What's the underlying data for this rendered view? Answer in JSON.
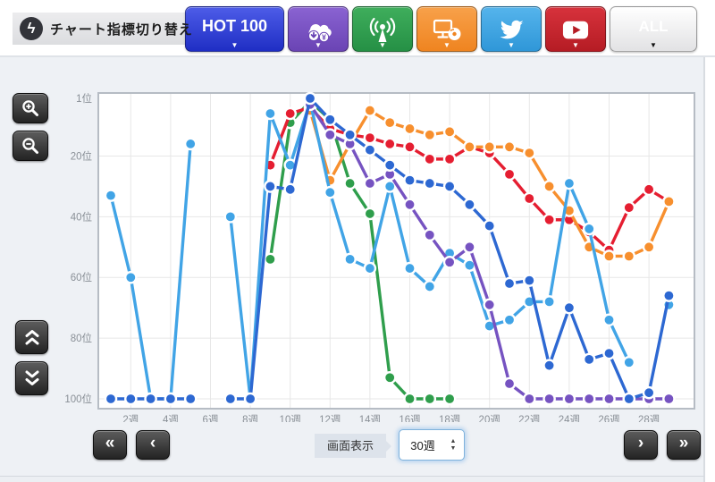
{
  "header": {
    "switcher_label": "チャート指標切り替え",
    "hot100_label": "HOT 100",
    "all_label": "ALL",
    "buttons": [
      {
        "id": "hot100",
        "label": "HOT 100",
        "color": "#2a38d2"
      },
      {
        "id": "sales-download",
        "icon": "cloud-download-icon",
        "color": "#7a53c4"
      },
      {
        "id": "radio-airplay",
        "icon": "radio-tower-icon",
        "color": "#2f9e4c"
      },
      {
        "id": "lookup",
        "icon": "pc-cd-icon",
        "color": "#f28d2e"
      },
      {
        "id": "twitter",
        "icon": "twitter-bird-icon",
        "color": "#3ea3e4"
      },
      {
        "id": "video",
        "icon": "youtube-play-icon",
        "color": "#c8252c"
      },
      {
        "id": "all",
        "label": "ALL",
        "color": "#f4f4f4"
      }
    ]
  },
  "icons": {
    "dropdown": "▼",
    "switcher": "ϟ",
    "first": "«",
    "prev": "‹",
    "next": "›",
    "last": "»",
    "stepper_up": "▲",
    "stepper_down": "▼"
  },
  "controls": {
    "display_label": "画面表示",
    "weeks_select_value": "30週"
  },
  "chart_data": {
    "type": "line",
    "y_axis_inverted": true,
    "grid": true,
    "legend": "none",
    "ylabel": "順位",
    "xlabel": "週",
    "ylim": [
      1,
      100
    ],
    "xlim": [
      1,
      30
    ],
    "y_ticks": [
      "1位",
      "20位",
      "40位",
      "60位",
      "80位",
      "100位"
    ],
    "y_tick_values": [
      1,
      20,
      40,
      60,
      80,
      100
    ],
    "x_ticks": [
      "2週",
      "4週",
      "6週",
      "8週",
      "10週",
      "12週",
      "14週",
      "16週",
      "18週",
      "20週",
      "22週",
      "24週",
      "26週",
      "28週"
    ],
    "x_tick_values": [
      2,
      4,
      6,
      8,
      10,
      12,
      14,
      16,
      18,
      20,
      22,
      24,
      26,
      28
    ],
    "series": [
      {
        "name": "green",
        "color": "#2f9e4c",
        "points": [
          [
            9,
            54
          ],
          [
            10,
            9
          ],
          [
            11,
            2
          ],
          [
            12,
            8
          ],
          [
            13,
            29
          ],
          [
            14,
            39
          ],
          [
            15,
            93
          ],
          [
            16,
            100
          ],
          [
            17,
            100
          ],
          [
            18,
            100
          ]
        ]
      },
      {
        "name": "red",
        "color": "#e51e31",
        "points": [
          [
            9,
            23
          ],
          [
            10,
            6
          ],
          [
            11,
            4
          ],
          [
            12,
            11
          ],
          [
            13,
            13
          ],
          [
            14,
            14
          ],
          [
            15,
            16
          ],
          [
            16,
            17
          ],
          [
            17,
            21
          ],
          [
            18,
            21
          ],
          [
            19,
            17
          ],
          [
            20,
            19
          ],
          [
            21,
            26
          ],
          [
            22,
            34
          ],
          [
            23,
            41
          ],
          [
            24,
            41
          ],
          [
            25,
            45
          ],
          [
            26,
            51
          ],
          [
            27,
            37
          ],
          [
            28,
            31
          ],
          [
            29,
            35
          ]
        ]
      },
      {
        "name": "orange",
        "color": "#f78f2e",
        "points": [
          [
            11,
            5
          ],
          [
            12,
            28
          ],
          [
            13,
            16
          ],
          [
            14,
            5
          ],
          [
            15,
            9
          ],
          [
            16,
            11
          ],
          [
            17,
            13
          ],
          [
            18,
            12
          ],
          [
            19,
            17
          ],
          [
            20,
            17
          ],
          [
            21,
            17
          ],
          [
            22,
            19
          ],
          [
            23,
            30
          ],
          [
            24,
            38
          ],
          [
            25,
            50
          ],
          [
            26,
            53
          ],
          [
            27,
            53
          ],
          [
            28,
            50
          ],
          [
            29,
            35
          ]
        ]
      },
      {
        "name": "light-blue",
        "color": "#41a4e6",
        "points": [
          [
            1,
            33
          ],
          [
            2,
            60
          ],
          [
            3,
            100
          ],
          [
            4,
            100
          ],
          [
            5,
            16
          ],
          [
            7,
            40
          ],
          [
            8,
            100
          ],
          [
            9,
            6
          ],
          [
            10,
            23
          ],
          [
            11,
            2
          ],
          [
            12,
            32
          ],
          [
            13,
            54
          ],
          [
            14,
            57
          ],
          [
            15,
            30
          ],
          [
            16,
            57
          ],
          [
            17,
            63
          ],
          [
            18,
            52
          ],
          [
            19,
            56
          ],
          [
            20,
            76
          ],
          [
            21,
            74
          ],
          [
            22,
            68
          ],
          [
            23,
            68
          ],
          [
            24,
            29
          ],
          [
            25,
            44
          ],
          [
            26,
            74
          ],
          [
            27,
            88
          ],
          [
            29,
            69
          ]
        ]
      },
      {
        "name": "purple",
        "color": "#7653c1",
        "points": [
          [
            11,
            3
          ],
          [
            12,
            13
          ],
          [
            13,
            16
          ],
          [
            14,
            29
          ],
          [
            15,
            26
          ],
          [
            16,
            36
          ],
          [
            17,
            46
          ],
          [
            18,
            55
          ],
          [
            19,
            50
          ],
          [
            20,
            69
          ],
          [
            21,
            95
          ],
          [
            22,
            100
          ],
          [
            23,
            100
          ],
          [
            24,
            100
          ],
          [
            25,
            100
          ],
          [
            26,
            100
          ],
          [
            27,
            100
          ],
          [
            28,
            100
          ],
          [
            29,
            100
          ]
        ]
      },
      {
        "name": "dark-blue",
        "color": "#2d68d2",
        "points": [
          [
            1,
            100
          ],
          [
            2,
            100
          ],
          [
            3,
            100
          ],
          [
            4,
            100
          ],
          [
            5,
            100
          ],
          [
            7,
            100
          ],
          [
            8,
            100
          ],
          [
            9,
            30
          ],
          [
            10,
            31
          ],
          [
            11,
            1
          ],
          [
            12,
            8
          ],
          [
            13,
            13
          ],
          [
            14,
            18
          ],
          [
            15,
            23
          ],
          [
            16,
            28
          ],
          [
            17,
            29
          ],
          [
            18,
            30
          ],
          [
            19,
            36
          ],
          [
            20,
            43
          ],
          [
            21,
            62
          ],
          [
            22,
            61
          ],
          [
            23,
            89
          ],
          [
            24,
            70
          ],
          [
            25,
            87
          ],
          [
            26,
            85
          ],
          [
            27,
            100
          ],
          [
            28,
            98
          ],
          [
            29,
            66
          ]
        ]
      }
    ]
  }
}
